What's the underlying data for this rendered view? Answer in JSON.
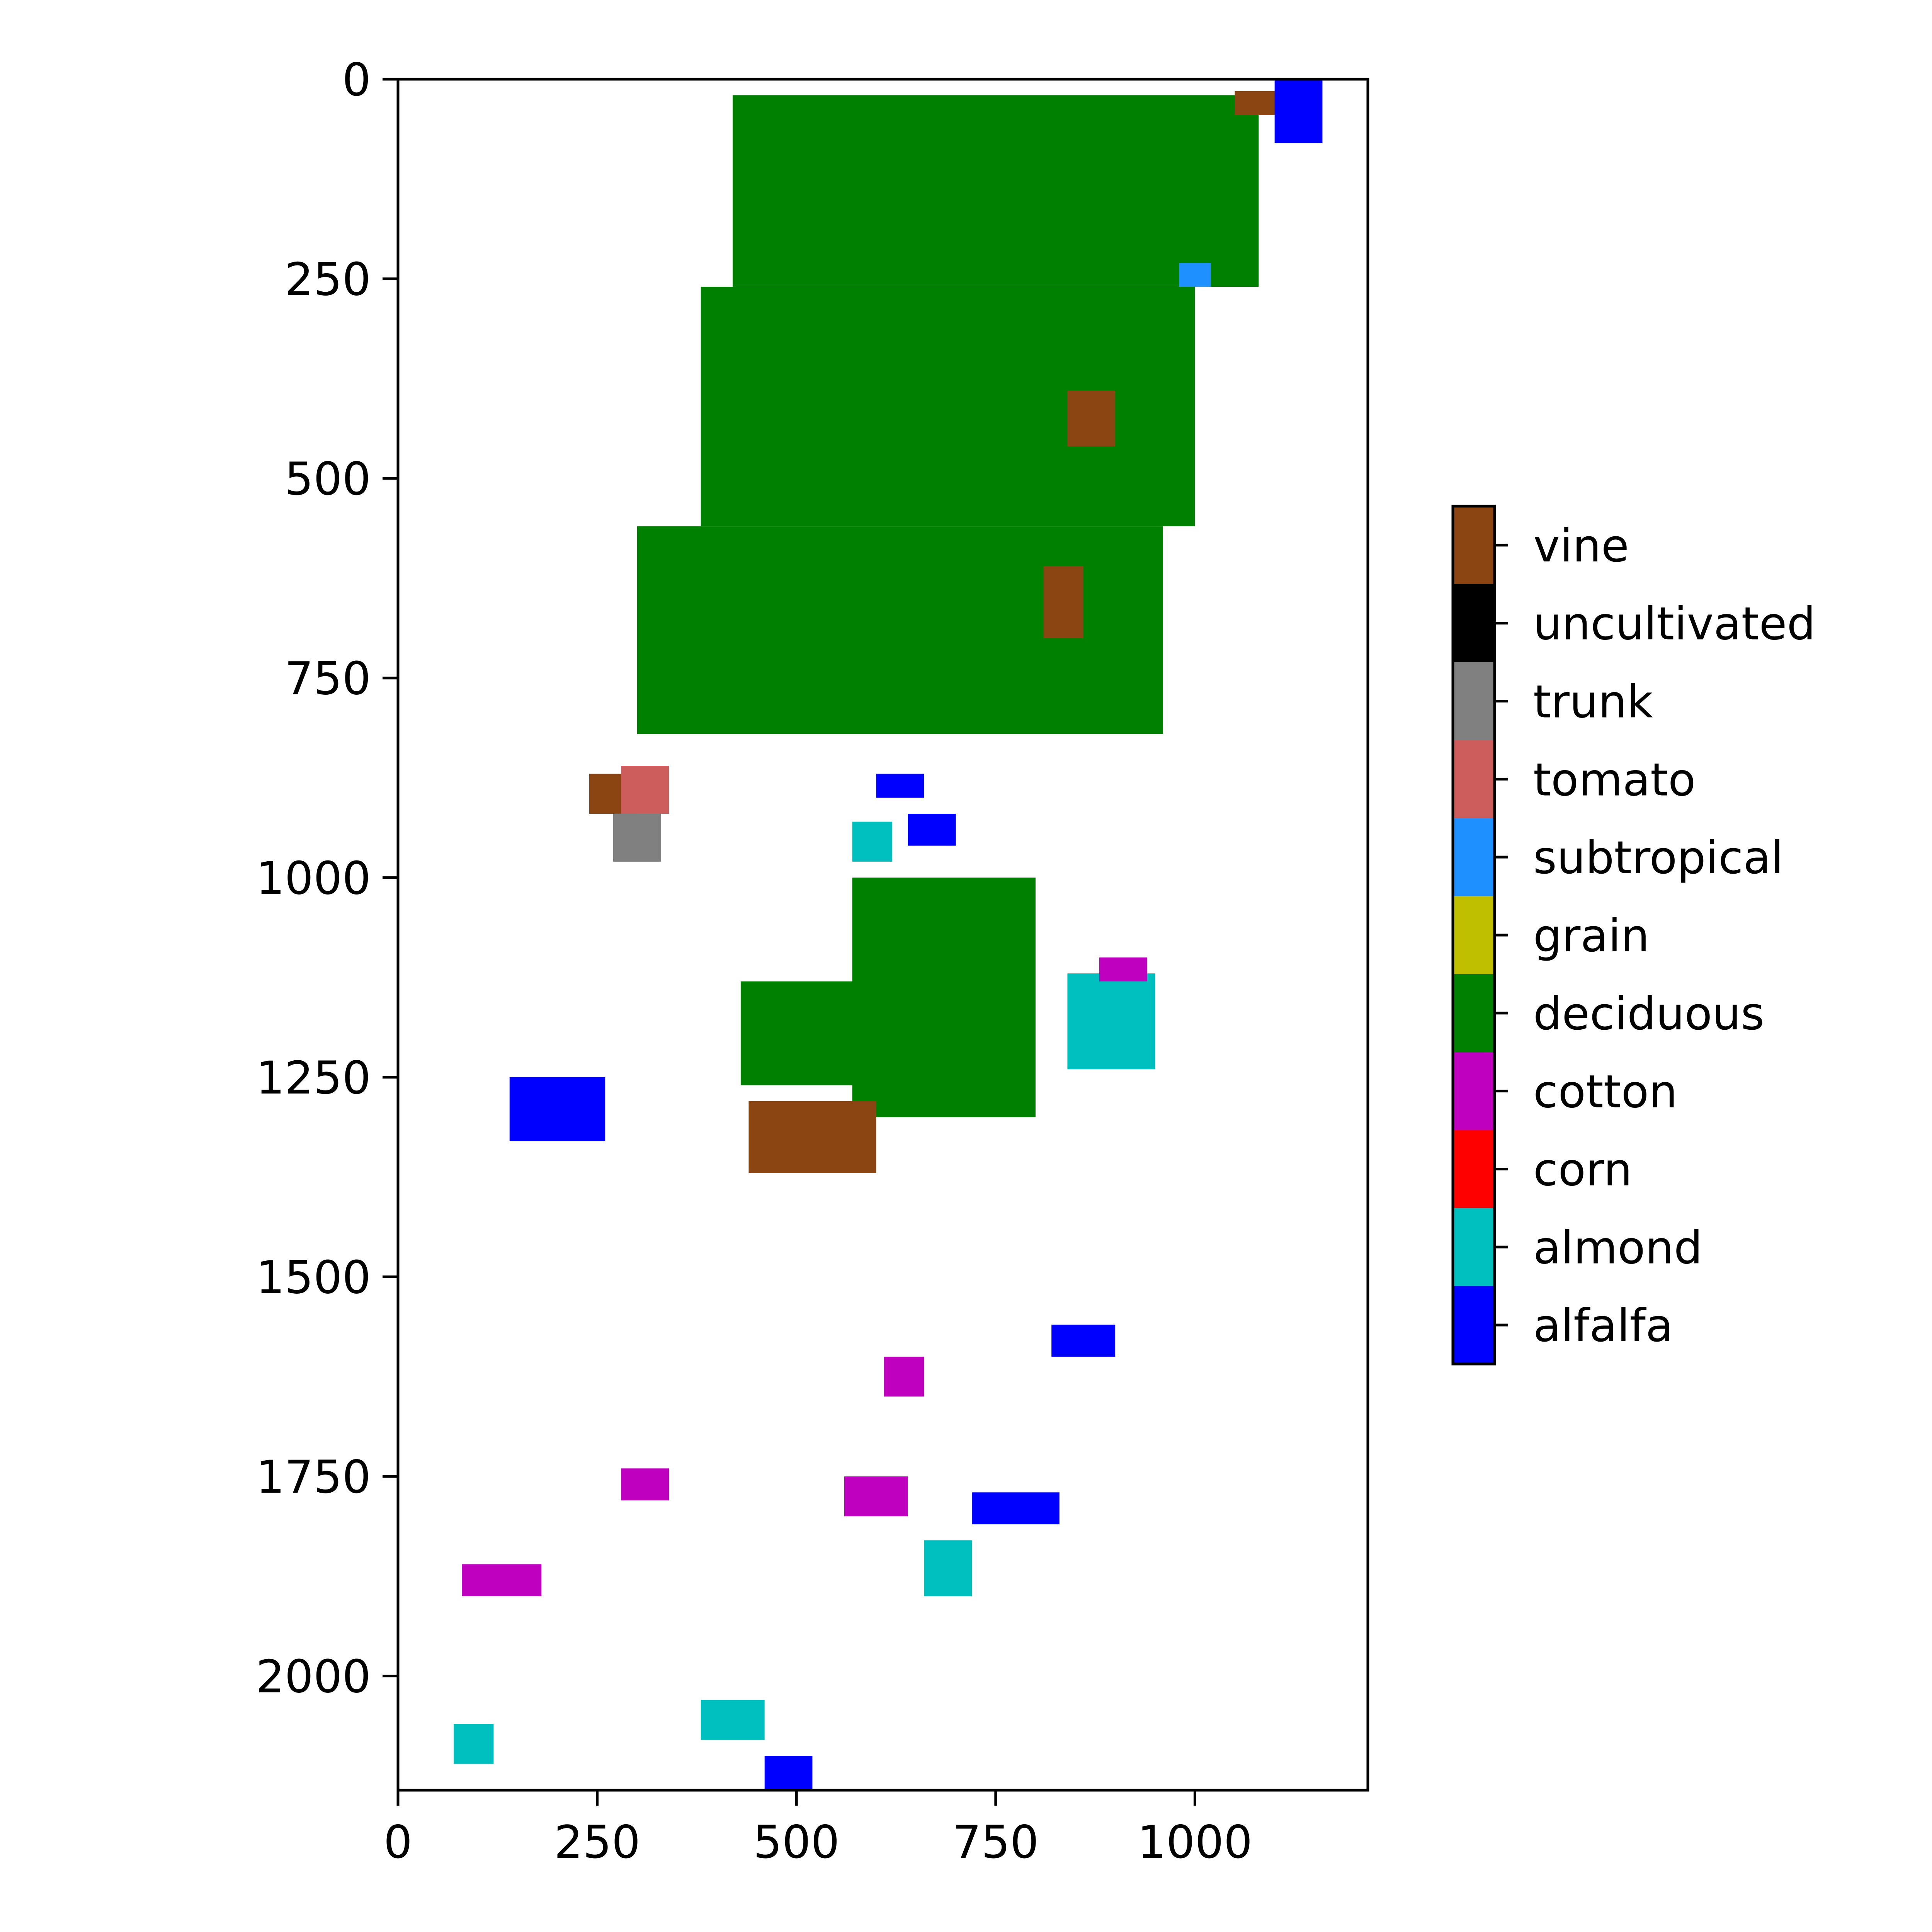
{
  "chart_data": {
    "type": "heatmap",
    "title": "",
    "xlabel": "",
    "ylabel": "",
    "x_range": [
      0,
      1217
    ],
    "y_range": [
      2143,
      0
    ],
    "x_ticks": [
      0,
      250,
      500,
      750,
      1000
    ],
    "y_ticks": [
      0,
      250,
      500,
      750,
      1000,
      1250,
      1500,
      1750,
      2000
    ],
    "grid": false,
    "colorbar": {
      "position": "right",
      "classes": [
        {
          "name": "alfalfa",
          "color": "#0000ff"
        },
        {
          "name": "almond",
          "color": "#00bfbf"
        },
        {
          "name": "corn",
          "color": "#ff0000"
        },
        {
          "name": "cotton",
          "color": "#bf00bf"
        },
        {
          "name": "deciduous",
          "color": "#008000"
        },
        {
          "name": "grain",
          "color": "#bfbf00"
        },
        {
          "name": "subtropical",
          "color": "#1e90ff"
        },
        {
          "name": "tomato",
          "color": "#cd5c5c"
        },
        {
          "name": "trunk",
          "color": "#808080"
        },
        {
          "name": "uncultivated",
          "color": "#000000"
        },
        {
          "name": "vine",
          "color": "#8b4513"
        }
      ]
    },
    "fields": [
      {
        "cls": "deciduous",
        "x": [
          420,
          1080
        ],
        "y": [
          20,
          260
        ]
      },
      {
        "cls": "deciduous",
        "x": [
          380,
          1000
        ],
        "y": [
          260,
          560
        ]
      },
      {
        "cls": "deciduous",
        "x": [
          300,
          960
        ],
        "y": [
          560,
          820
        ]
      },
      {
        "cls": "deciduous",
        "x": [
          570,
          800
        ],
        "y": [
          1000,
          1300
        ]
      },
      {
        "cls": "deciduous",
        "x": [
          430,
          760
        ],
        "y": [
          1130,
          1260
        ]
      },
      {
        "cls": "almond",
        "x": [
          840,
          950
        ],
        "y": [
          1120,
          1240
        ]
      },
      {
        "cls": "vine",
        "x": [
          440,
          600
        ],
        "y": [
          1280,
          1370
        ]
      },
      {
        "cls": "vine",
        "x": [
          240,
          300
        ],
        "y": [
          870,
          920
        ]
      },
      {
        "cls": "tomato",
        "x": [
          280,
          340
        ],
        "y": [
          860,
          920
        ]
      },
      {
        "cls": "trunk",
        "x": [
          270,
          330
        ],
        "y": [
          920,
          980
        ]
      },
      {
        "cls": "vine",
        "x": [
          840,
          900
        ],
        "y": [
          390,
          460
        ]
      },
      {
        "cls": "vine",
        "x": [
          810,
          860
        ],
        "y": [
          610,
          700
        ]
      },
      {
        "cls": "vine",
        "x": [
          1050,
          1110
        ],
        "y": [
          15,
          45
        ]
      },
      {
        "cls": "alfalfa",
        "x": [
          1100,
          1160
        ],
        "y": [
          0,
          80
        ]
      },
      {
        "cls": "alfalfa",
        "x": [
          140,
          260
        ],
        "y": [
          1250,
          1330
        ]
      },
      {
        "cls": "alfalfa",
        "x": [
          720,
          830
        ],
        "y": [
          1770,
          1810
        ]
      },
      {
        "cls": "alfalfa",
        "x": [
          460,
          520
        ],
        "y": [
          2100,
          2143
        ]
      },
      {
        "cls": "alfalfa",
        "x": [
          600,
          660
        ],
        "y": [
          870,
          900
        ]
      },
      {
        "cls": "alfalfa",
        "x": [
          640,
          700
        ],
        "y": [
          920,
          960
        ]
      },
      {
        "cls": "alfalfa",
        "x": [
          820,
          900
        ],
        "y": [
          1560,
          1600
        ]
      },
      {
        "cls": "cotton",
        "x": [
          80,
          180
        ],
        "y": [
          1860,
          1900
        ]
      },
      {
        "cls": "cotton",
        "x": [
          560,
          640
        ],
        "y": [
          1750,
          1800
        ]
      },
      {
        "cls": "cotton",
        "x": [
          280,
          340
        ],
        "y": [
          1740,
          1780
        ]
      },
      {
        "cls": "cotton",
        "x": [
          610,
          660
        ],
        "y": [
          1600,
          1650
        ]
      },
      {
        "cls": "almond",
        "x": [
          660,
          720
        ],
        "y": [
          1830,
          1900
        ]
      },
      {
        "cls": "almond",
        "x": [
          380,
          460
        ],
        "y": [
          2030,
          2080
        ]
      },
      {
        "cls": "almond",
        "x": [
          70,
          120
        ],
        "y": [
          2060,
          2110
        ]
      },
      {
        "cls": "almond",
        "x": [
          570,
          620
        ],
        "y": [
          930,
          980
        ]
      },
      {
        "cls": "subtropical",
        "x": [
          980,
          1020
        ],
        "y": [
          230,
          260
        ]
      },
      {
        "cls": "cotton",
        "x": [
          880,
          940
        ],
        "y": [
          1100,
          1130
        ]
      }
    ]
  }
}
